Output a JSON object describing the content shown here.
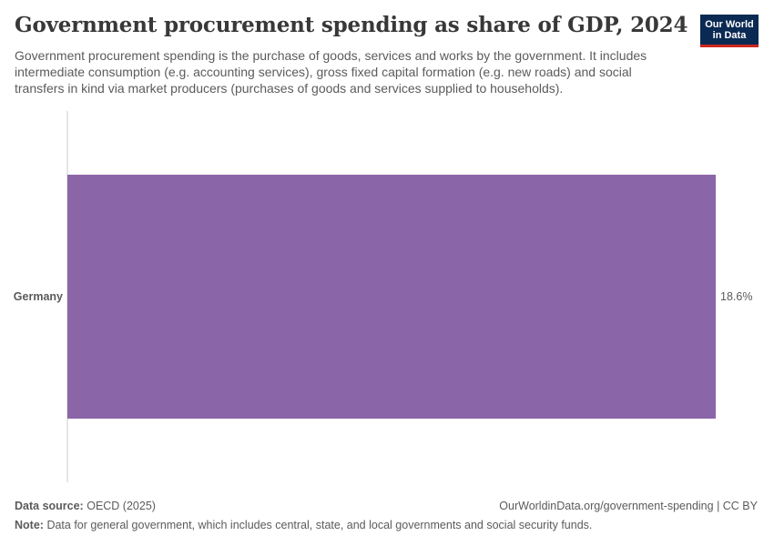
{
  "header": {
    "title": "Government procurement spending as share of GDP, 2024",
    "subtitle": "Government procurement spending is the purchase of goods, services and works by the government. It includes intermediate consumption (e.g. accounting services), gross fixed capital formation (e.g. new roads) and social transfers in kind via market producers (purchases of goods and services supplied to households)."
  },
  "logo": {
    "line1": "Our World",
    "line2": "in Data",
    "background": "#0b2a53",
    "accent": "#ce261e"
  },
  "chart_data": {
    "type": "bar",
    "orientation": "horizontal",
    "categories": [
      "Germany"
    ],
    "values": [
      18.6
    ],
    "value_labels": [
      "18.6%"
    ],
    "unit": "%",
    "xlim": [
      0,
      18.6
    ],
    "bar_color": "#8a65a8",
    "grid": false
  },
  "footer": {
    "source_label": "Data source:",
    "source_value": "OECD (2025)",
    "url": "OurWorldinData.org/government-spending | CC BY",
    "note_label": "Note:",
    "note_value": "Data for general government, which includes central, state, and local governments and social security funds."
  }
}
